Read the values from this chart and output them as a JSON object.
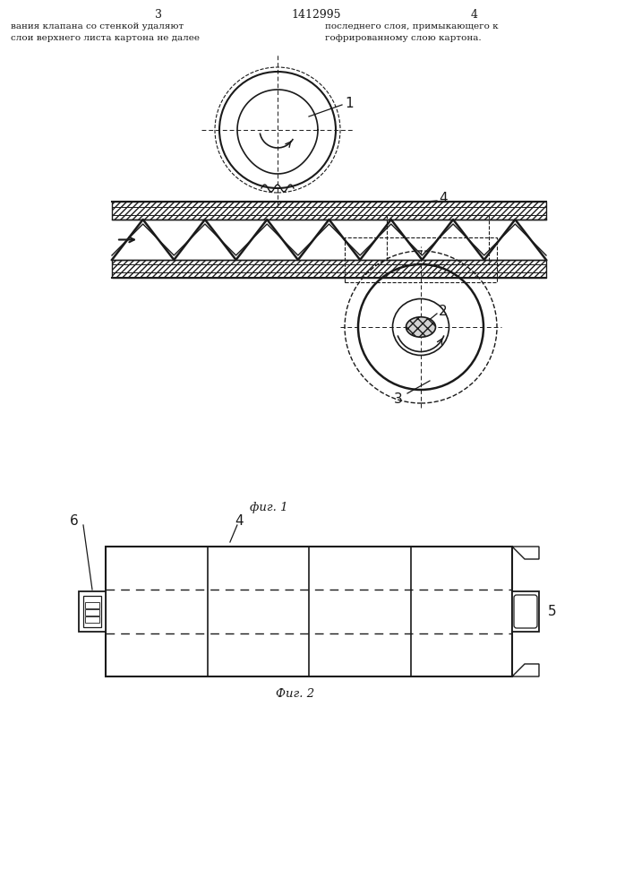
{
  "page_width": 7.07,
  "page_height": 10.0,
  "background_color": "#ffffff",
  "header": {
    "left_page_num": "3",
    "center_patent": "1412995",
    "right_page_num": "4",
    "left_text_line1": "вания клапана со стенкой удаляют",
    "left_text_line2": "слои верхнего листа картона не далее",
    "right_text_line1": "последнего слоя, примыкающего к",
    "right_text_line2": "гофрированному слою картона."
  },
  "fig1_caption": "фиг. 1",
  "fig2_caption": "Фиг. 2",
  "line_color": "#1a1a1a"
}
